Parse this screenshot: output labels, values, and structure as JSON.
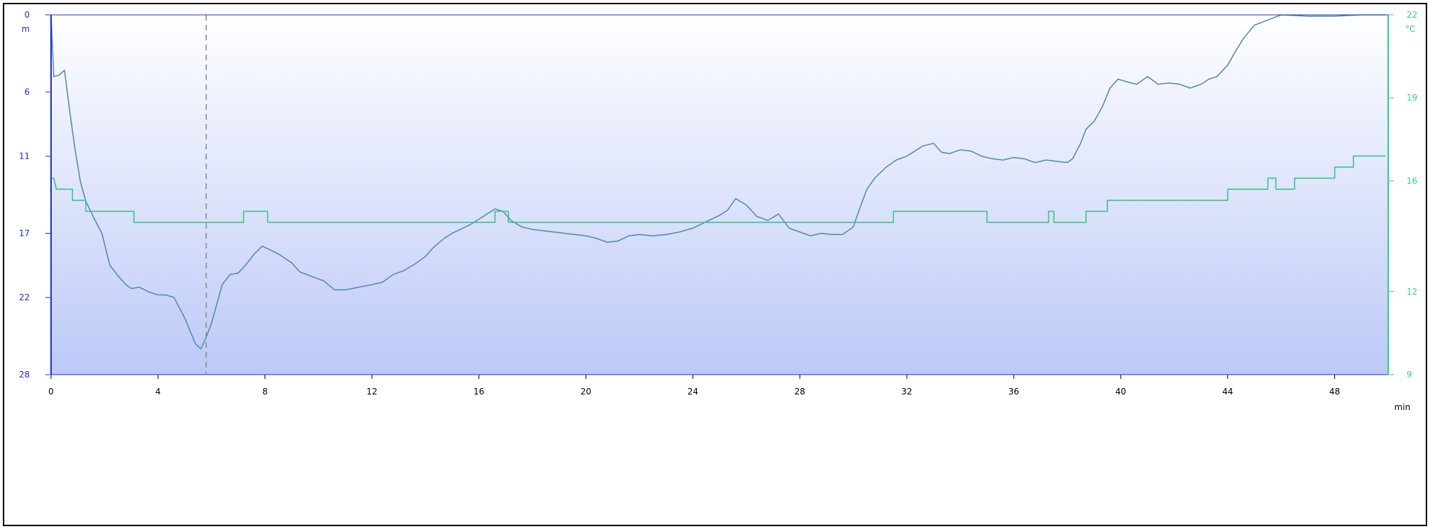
{
  "chart_data": {
    "type": "line",
    "x_unit": "min",
    "y_unit": "m",
    "y2_unit": "°C",
    "xlim": [
      0,
      50
    ],
    "ylim": [
      0,
      28
    ],
    "y_inverted": true,
    "y2lim": [
      9,
      22
    ],
    "x_ticks": [
      0,
      4,
      8,
      12,
      16,
      20,
      24,
      28,
      32,
      36,
      40,
      44,
      48
    ],
    "y_ticks": [
      0,
      6,
      11,
      17,
      22,
      28
    ],
    "y2_ticks": [
      9,
      12,
      16,
      19,
      22
    ],
    "marker_x": 5.8,
    "colors": {
      "depth": "#5b8bb0",
      "temperature": "#3cc48a",
      "left_axis": "#1a2fd8",
      "right_axis": "#2fcf84",
      "grid_top": "#ffffff",
      "grid_bottom": "#bcc9f7"
    },
    "series": [
      {
        "key": "depth",
        "axis": "left",
        "x": [
          0,
          0.1,
          0.3,
          0.5,
          0.7,
          0.9,
          1.1,
          1.3,
          1.6,
          1.9,
          2.2,
          2.5,
          2.8,
          3.0,
          3.3,
          3.7,
          4.0,
          4.3,
          4.6,
          4.8,
          5.0,
          5.2,
          5.4,
          5.6,
          5.8,
          6.0,
          6.2,
          6.4,
          6.7,
          7.0,
          7.3,
          7.6,
          7.9,
          8.1,
          8.5,
          9.0,
          9.3,
          9.8,
          10.2,
          10.6,
          11.0,
          11.5,
          12.0,
          12.4,
          12.8,
          13.2,
          13.6,
          14.0,
          14.3,
          14.7,
          15.0,
          15.3,
          15.7,
          16.0,
          16.3,
          16.6,
          16.9,
          17.2,
          17.6,
          18.0,
          18.4,
          18.8,
          19.2,
          19.6,
          20.0,
          20.4,
          20.8,
          21.2,
          21.6,
          22.0,
          22.5,
          23.0,
          23.5,
          24.0,
          24.5,
          25.0,
          25.3,
          25.6,
          26.0,
          26.4,
          26.8,
          27.2,
          27.6,
          28.0,
          28.4,
          28.8,
          29.2,
          29.6,
          30.0,
          30.2,
          30.5,
          30.8,
          31.2,
          31.6,
          32.0,
          32.3,
          32.6,
          33.0,
          33.3,
          33.6,
          34.0,
          34.4,
          34.8,
          35.2,
          35.6,
          36.0,
          36.4,
          36.8,
          37.2,
          37.6,
          38.0,
          38.2,
          38.5,
          38.7,
          39.0,
          39.3,
          39.6,
          39.9,
          40.2,
          40.6,
          41.0,
          41.4,
          41.8,
          42.2,
          42.6,
          43.0,
          43.3,
          43.6,
          44.0,
          44.3,
          44.6,
          45.0,
          46.0,
          47.0,
          48.0,
          49.0,
          49.9
        ],
        "y": [
          0.0,
          4.8,
          4.7,
          4.3,
          7.5,
          10.5,
          13.0,
          14.5,
          15.8,
          17.0,
          19.5,
          20.3,
          21.0,
          21.3,
          21.2,
          21.6,
          21.8,
          21.8,
          22.0,
          22.8,
          23.6,
          24.6,
          25.6,
          26.0,
          25.1,
          24.0,
          22.5,
          21.0,
          20.2,
          20.1,
          19.4,
          18.6,
          18.0,
          18.2,
          18.6,
          19.3,
          20.0,
          20.4,
          20.7,
          21.4,
          21.4,
          21.2,
          21.0,
          20.8,
          20.2,
          19.9,
          19.4,
          18.8,
          18.1,
          17.4,
          17.0,
          16.7,
          16.3,
          15.9,
          15.5,
          15.1,
          15.3,
          16.0,
          16.5,
          16.7,
          16.8,
          16.9,
          17.0,
          17.1,
          17.2,
          17.4,
          17.7,
          17.6,
          17.2,
          17.1,
          17.2,
          17.1,
          16.9,
          16.6,
          16.1,
          15.6,
          15.2,
          14.3,
          14.8,
          15.7,
          16.0,
          15.5,
          16.6,
          16.9,
          17.2,
          17.0,
          17.1,
          17.1,
          16.5,
          15.3,
          13.6,
          12.7,
          11.9,
          11.3,
          11.0,
          10.6,
          10.2,
          10.0,
          10.7,
          10.8,
          10.5,
          10.6,
          11.0,
          11.2,
          11.3,
          11.1,
          11.2,
          11.5,
          11.3,
          11.4,
          11.5,
          11.2,
          10.0,
          8.9,
          8.3,
          7.2,
          5.7,
          5.0,
          5.2,
          5.4,
          4.8,
          5.4,
          5.3,
          5.4,
          5.7,
          5.4,
          5.0,
          4.8,
          3.9,
          2.8,
          1.8,
          0.8,
          0.0,
          0.1,
          0.1,
          0.0,
          0.0
        ]
      },
      {
        "key": "temperature",
        "axis": "right",
        "x": [
          0,
          0.1,
          0.2,
          0.8,
          0.8,
          1.3,
          1.3,
          3.1,
          3.1,
          7.2,
          7.2,
          8.1,
          8.1,
          16.6,
          16.6,
          17.1,
          17.1,
          31.5,
          31.5,
          35.0,
          35.0,
          37.3,
          37.3,
          37.5,
          37.5,
          38.7,
          38.7,
          39.5,
          39.5,
          44.0,
          44.0,
          45.5,
          45.5,
          45.8,
          45.8,
          46.5,
          46.5,
          47.2,
          47.2,
          48.0,
          48.0,
          48.7,
          48.7,
          49.9
        ],
        "y": [
          16.1,
          16.1,
          15.7,
          15.7,
          15.3,
          15.3,
          14.9,
          14.9,
          14.5,
          14.5,
          14.9,
          14.9,
          14.5,
          14.5,
          14.9,
          14.9,
          14.5,
          14.5,
          14.9,
          14.9,
          14.5,
          14.5,
          14.9,
          14.9,
          14.5,
          14.5,
          14.9,
          14.9,
          15.3,
          15.3,
          15.7,
          15.7,
          16.1,
          16.1,
          15.7,
          15.7,
          16.1,
          16.1,
          16.1,
          16.1,
          16.5,
          16.5,
          16.9,
          16.9
        ]
      }
    ]
  }
}
